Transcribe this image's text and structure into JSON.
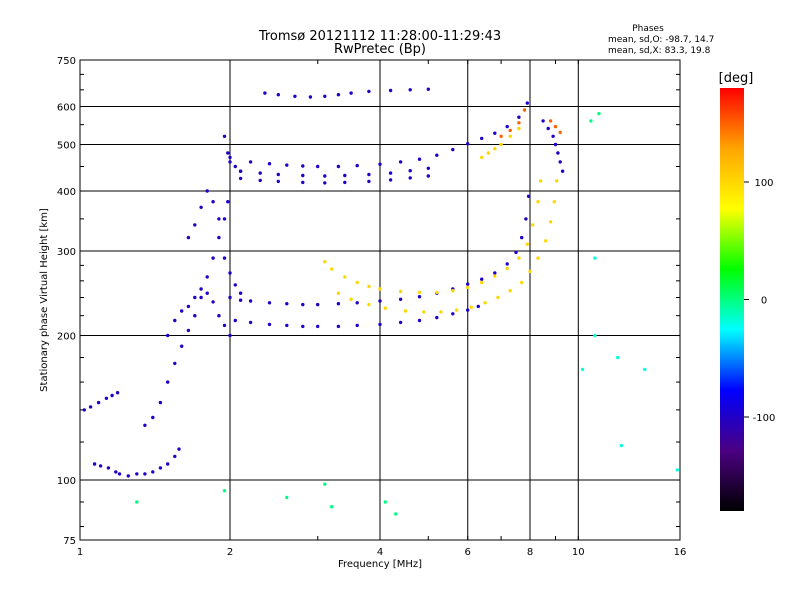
{
  "chart_data": {
    "type": "scatter",
    "title": "Tromsø 20121112 11:28:00-11:29:43",
    "subtitle": "RwPretec (Bp)",
    "xlabel": "Frequency [MHz]",
    "ylabel": "Stationary phase Virtual Height [km]",
    "x_scale": "log",
    "y_scale": "log",
    "xlim": [
      1,
      16
    ],
    "ylim": [
      75,
      750
    ],
    "x_ticks": [
      1,
      2,
      4,
      6,
      8,
      10,
      16
    ],
    "y_ticks": [
      75,
      100,
      200,
      300,
      400,
      500,
      600,
      750
    ],
    "grid": true,
    "stats": {
      "heading": "Phases",
      "line_o": "mean, sd,O: -98.7, 14.7",
      "line_x": "mean, sd,X: 83.3, 19.8"
    },
    "colorbar": {
      "label": "[deg]",
      "range": [
        -180,
        180
      ],
      "ticks": [
        100,
        0,
        -100
      ],
      "colors": [
        "#000000",
        "#4b0082",
        "#0000ff",
        "#00ffff",
        "#00ff00",
        "#ffff00",
        "#ffa500",
        "#ff0000"
      ]
    },
    "series": [
      {
        "phase_deg": -100,
        "points": [
          [
            1.02,
            140
          ],
          [
            1.05,
            142
          ],
          [
            1.09,
            145
          ],
          [
            1.13,
            148
          ],
          [
            1.16,
            150
          ],
          [
            1.19,
            152
          ]
        ]
      },
      {
        "phase_deg": -100,
        "points": [
          [
            1.07,
            108
          ],
          [
            1.1,
            107
          ],
          [
            1.14,
            106
          ],
          [
            1.18,
            104
          ],
          [
            1.2,
            103
          ],
          [
            1.25,
            102
          ],
          [
            1.3,
            103
          ],
          [
            1.35,
            103
          ],
          [
            1.4,
            104
          ],
          [
            1.45,
            106
          ],
          [
            1.5,
            108
          ],
          [
            1.55,
            112
          ],
          [
            1.58,
            116
          ]
        ]
      },
      {
        "phase_deg": -100,
        "points": [
          [
            1.35,
            130
          ],
          [
            1.4,
            135
          ],
          [
            1.45,
            145
          ],
          [
            1.5,
            160
          ],
          [
            1.55,
            175
          ],
          [
            1.6,
            190
          ],
          [
            1.65,
            205
          ],
          [
            1.7,
            220
          ],
          [
            1.75,
            240
          ],
          [
            1.8,
            265
          ],
          [
            1.85,
            290
          ],
          [
            1.9,
            320
          ],
          [
            1.95,
            350
          ],
          [
            1.98,
            380
          ]
        ]
      },
      {
        "phase_deg": -100,
        "points": [
          [
            1.5,
            200
          ],
          [
            1.55,
            215
          ],
          [
            1.6,
            225
          ],
          [
            1.65,
            230
          ],
          [
            1.7,
            240
          ],
          [
            1.75,
            250
          ],
          [
            1.8,
            245
          ],
          [
            1.85,
            235
          ],
          [
            1.9,
            220
          ],
          [
            1.95,
            210
          ],
          [
            2.0,
            200
          ]
        ]
      },
      {
        "phase_deg": -100,
        "points": [
          [
            1.65,
            320
          ],
          [
            1.7,
            340
          ],
          [
            1.75,
            370
          ],
          [
            1.8,
            400
          ],
          [
            1.85,
            380
          ],
          [
            1.9,
            350
          ],
          [
            1.95,
            290
          ],
          [
            2.0,
            270
          ],
          [
            2.05,
            255
          ],
          [
            2.1,
            245
          ]
        ]
      },
      {
        "phase_deg": -100,
        "points": [
          [
            1.95,
            520
          ],
          [
            1.98,
            480
          ],
          [
            2.0,
            460
          ],
          [
            2.05,
            450
          ],
          [
            2.1,
            440
          ]
        ]
      },
      {
        "phase_deg": -100,
        "points": [
          [
            2.0,
            240
          ],
          [
            2.1,
            237
          ],
          [
            2.2,
            236
          ],
          [
            2.4,
            234
          ],
          [
            2.6,
            233
          ],
          [
            2.8,
            232
          ],
          [
            3.0,
            232
          ],
          [
            3.3,
            233
          ],
          [
            3.6,
            234
          ],
          [
            4.0,
            236
          ],
          [
            4.4,
            238
          ],
          [
            4.8,
            241
          ],
          [
            5.2,
            245
          ],
          [
            5.6,
            250
          ],
          [
            6.0,
            256
          ],
          [
            6.4,
            262
          ],
          [
            6.8,
            270
          ],
          [
            7.2,
            282
          ],
          [
            7.5,
            298
          ],
          [
            7.7,
            320
          ],
          [
            7.85,
            350
          ],
          [
            7.95,
            390
          ]
        ]
      },
      {
        "phase_deg": -100,
        "points": [
          [
            2.05,
            215
          ],
          [
            2.2,
            213
          ],
          [
            2.4,
            211
          ],
          [
            2.6,
            210
          ],
          [
            2.8,
            209
          ],
          [
            3.0,
            209
          ],
          [
            3.3,
            209
          ],
          [
            3.6,
            210
          ],
          [
            4.0,
            211
          ],
          [
            4.4,
            213
          ],
          [
            4.8,
            215
          ],
          [
            5.2,
            218
          ],
          [
            5.6,
            222
          ],
          [
            6.0,
            226
          ],
          [
            6.3,
            230
          ]
        ]
      },
      {
        "phase_deg": -100,
        "points": [
          [
            2.0,
            470
          ],
          [
            2.2,
            460
          ],
          [
            2.4,
            456
          ],
          [
            2.6,
            453
          ],
          [
            2.8,
            451
          ],
          [
            3.0,
            450
          ],
          [
            3.3,
            450
          ],
          [
            3.6,
            452
          ],
          [
            4.0,
            455
          ],
          [
            4.4,
            460
          ],
          [
            4.8,
            466
          ],
          [
            5.2,
            475
          ],
          [
            5.6,
            488
          ],
          [
            6.0,
            502
          ],
          [
            6.4,
            515
          ],
          [
            6.8,
            528
          ],
          [
            7.2,
            545
          ],
          [
            7.6,
            570
          ],
          [
            7.9,
            610
          ]
        ]
      },
      {
        "phase_deg": -100,
        "points": [
          [
            2.1,
            440
          ],
          [
            2.3,
            436
          ],
          [
            2.5,
            433
          ],
          [
            2.8,
            431
          ],
          [
            3.1,
            430
          ],
          [
            3.4,
            431
          ],
          [
            3.8,
            433
          ],
          [
            4.2,
            436
          ],
          [
            4.6,
            441
          ],
          [
            5.0,
            446
          ]
        ]
      },
      {
        "phase_deg": -100,
        "points": [
          [
            2.1,
            425
          ],
          [
            2.3,
            421
          ],
          [
            2.5,
            419
          ],
          [
            2.8,
            417
          ],
          [
            3.1,
            416
          ],
          [
            3.4,
            417
          ],
          [
            3.8,
            419
          ],
          [
            4.2,
            422
          ],
          [
            4.6,
            426
          ],
          [
            5.0,
            430
          ]
        ]
      },
      {
        "phase_deg": -100,
        "points": [
          [
            2.35,
            640
          ],
          [
            2.5,
            635
          ],
          [
            2.7,
            630
          ],
          [
            2.9,
            628
          ],
          [
            3.1,
            630
          ],
          [
            3.3,
            635
          ],
          [
            3.5,
            640
          ],
          [
            3.8,
            645
          ],
          [
            4.2,
            648
          ],
          [
            4.6,
            650
          ],
          [
            5.0,
            652
          ]
        ]
      },
      {
        "phase_deg": 100,
        "points": [
          [
            3.1,
            285
          ],
          [
            3.2,
            275
          ],
          [
            3.4,
            265
          ],
          [
            3.6,
            258
          ],
          [
            3.8,
            253
          ],
          [
            4.0,
            250
          ],
          [
            4.4,
            247
          ],
          [
            4.8,
            246
          ],
          [
            5.2,
            246
          ],
          [
            5.6,
            248
          ],
          [
            6.0,
            252
          ],
          [
            6.4,
            258
          ],
          [
            6.8,
            266
          ],
          [
            7.2,
            276
          ],
          [
            7.6,
            290
          ],
          [
            7.9,
            310
          ],
          [
            8.1,
            340
          ],
          [
            8.3,
            380
          ],
          [
            8.4,
            420
          ]
        ]
      },
      {
        "phase_deg": 100,
        "points": [
          [
            3.3,
            245
          ],
          [
            3.5,
            238
          ],
          [
            3.8,
            232
          ],
          [
            4.1,
            228
          ],
          [
            4.5,
            225
          ],
          [
            4.9,
            224
          ],
          [
            5.3,
            224
          ],
          [
            5.7,
            226
          ],
          [
            6.1,
            229
          ],
          [
            6.5,
            234
          ],
          [
            6.9,
            240
          ],
          [
            7.3,
            248
          ],
          [
            7.7,
            258
          ],
          [
            8.0,
            272
          ],
          [
            8.3,
            290
          ],
          [
            8.6,
            315
          ],
          [
            8.8,
            345
          ],
          [
            8.95,
            380
          ],
          [
            9.05,
            420
          ]
        ]
      },
      {
        "phase_deg": 100,
        "points": [
          [
            6.4,
            470
          ],
          [
            6.6,
            480
          ],
          [
            6.8,
            490
          ],
          [
            7.0,
            500
          ],
          [
            7.3,
            520
          ],
          [
            7.6,
            540
          ]
        ]
      },
      {
        "phase_deg": 150,
        "points": [
          [
            7.0,
            520
          ],
          [
            7.3,
            535
          ],
          [
            7.6,
            555
          ],
          [
            7.8,
            590
          ],
          [
            8.8,
            560
          ],
          [
            9.0,
            545
          ],
          [
            9.2,
            530
          ]
        ]
      },
      {
        "phase_deg": -100,
        "points": [
          [
            8.5,
            560
          ],
          [
            8.7,
            540
          ],
          [
            8.9,
            520
          ],
          [
            9.0,
            500
          ],
          [
            9.1,
            480
          ],
          [
            9.2,
            460
          ],
          [
            9.3,
            440
          ]
        ]
      },
      {
        "phase_deg": -20,
        "points": [
          [
            10.2,
            170
          ],
          [
            10.8,
            200
          ],
          [
            12.0,
            180
          ],
          [
            13.6,
            170
          ],
          [
            15.8,
            105
          ],
          [
            12.2,
            118
          ],
          [
            10.8,
            290
          ]
        ]
      },
      {
        "phase_deg": 0,
        "points": [
          [
            3.1,
            98
          ],
          [
            4.1,
            90
          ],
          [
            4.3,
            85
          ],
          [
            3.2,
            88
          ],
          [
            2.6,
            92
          ],
          [
            1.95,
            95
          ],
          [
            1.3,
            90
          ],
          [
            10.6,
            560
          ],
          [
            11.0,
            580
          ]
        ]
      }
    ]
  }
}
